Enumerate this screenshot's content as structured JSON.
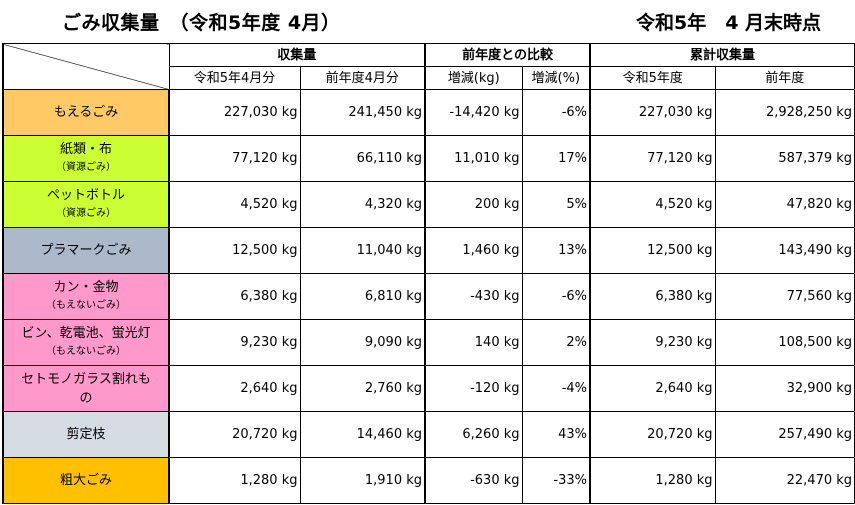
{
  "title": "ごみ収集量　（令和5年度 4月）",
  "as_of": "令和5年　4 月末時点",
  "header": {
    "group_collection": "収集量",
    "group_compare": "前年度との比較",
    "group_cumulative": "累計収集量",
    "col_current_month": "令和5年4月分",
    "col_prev_month": "前年度4月分",
    "col_diff_kg": "増減(kg)",
    "col_diff_pct": "増減(%)",
    "col_cum_current": "令和5年度",
    "col_cum_prev": "前年度"
  },
  "colors": {
    "moeru": "#FFC966",
    "shigen": "#CCFF33",
    "pla": "#ACB9CA",
    "moenai": "#FF99CC",
    "sentei": "#D6DCE4",
    "sodai": "#FFC000"
  },
  "rows": [
    {
      "label": "もえるごみ",
      "sub": "",
      "current": "227,030 kg",
      "prev": "241,450 kg",
      "diff": "-14,420 kg",
      "pct": "-6%",
      "cum_current": "227,030 kg",
      "cum_prev": "2,928,250 kg"
    },
    {
      "label": "紙類・布",
      "sub": "（資源ごみ）",
      "current": "77,120 kg",
      "prev": "66,110 kg",
      "diff": "11,010 kg",
      "pct": "17%",
      "cum_current": "77,120 kg",
      "cum_prev": "587,379 kg"
    },
    {
      "label": "ペットボトル",
      "sub": "（資源ごみ）",
      "current": "4,520 kg",
      "prev": "4,320 kg",
      "diff": "200 kg",
      "pct": "5%",
      "cum_current": "4,520 kg",
      "cum_prev": "47,820 kg"
    },
    {
      "label": "プラマークごみ",
      "sub": "",
      "current": "12,500 kg",
      "prev": "11,040 kg",
      "diff": "1,460 kg",
      "pct": "13%",
      "cum_current": "12,500 kg",
      "cum_prev": "143,490 kg"
    },
    {
      "label": "カン・金物",
      "sub": "（もえないごみ）",
      "current": "6,380 kg",
      "prev": "6,810 kg",
      "diff": "-430 kg",
      "pct": "-6%",
      "cum_current": "6,380 kg",
      "cum_prev": "77,560 kg"
    },
    {
      "label": "ビン、乾電池、蛍光灯",
      "sub": "（もえないごみ）",
      "current": "9,230 kg",
      "prev": "9,090 kg",
      "diff": "140 kg",
      "pct": "2%",
      "cum_current": "9,230 kg",
      "cum_prev": "108,500 kg"
    },
    {
      "label": "セトモノガラス割れも",
      "sub": "の",
      "current": "2,640 kg",
      "prev": "2,760 kg",
      "diff": "-120 kg",
      "pct": "-4%",
      "cum_current": "2,640 kg",
      "cum_prev": "32,900 kg"
    },
    {
      "label": "剪定枝",
      "sub": "",
      "current": "20,720 kg",
      "prev": "14,460 kg",
      "diff": "6,260 kg",
      "pct": "43%",
      "cum_current": "20,720 kg",
      "cum_prev": "257,490 kg"
    },
    {
      "label": "粗大ごみ",
      "sub": "",
      "current": "1,280 kg",
      "prev": "1,910 kg",
      "diff": "-630 kg",
      "pct": "-33%",
      "cum_current": "1,280 kg",
      "cum_prev": "22,470 kg"
    }
  ]
}
